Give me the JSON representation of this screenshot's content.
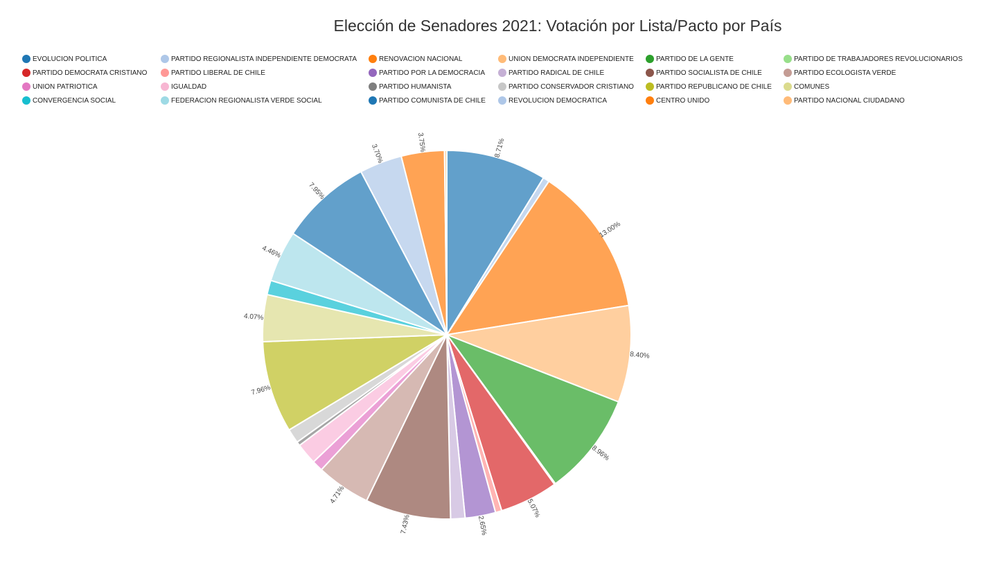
{
  "chart_data": {
    "type": "pie",
    "title": "Elección de Senadores 2021: Votación por Lista/Pacto por País",
    "legend_position": "top",
    "categories": [
      "EVOLUCION POLITICA",
      "PARTIDO REGIONALISTA INDEPENDIENTE DEMOCRATA",
      "RENOVACION NACIONAL",
      "UNION DEMOCRATA INDEPENDIENTE",
      "PARTIDO DE LA GENTE",
      "PARTIDO DE TRABAJADORES REVOLUCIONARIOS",
      "PARTIDO DEMOCRATA CRISTIANO",
      "PARTIDO LIBERAL DE CHILE",
      "PARTIDO POR LA DEMOCRACIA",
      "PARTIDO RADICAL DE CHILE",
      "PARTIDO SOCIALISTA DE CHILE",
      "PARTIDO ECOLOGISTA VERDE",
      "UNION PATRIOTICA",
      "IGUALDAD",
      "PARTIDO HUMANISTA",
      "PARTIDO CONSERVADOR CRISTIANO",
      "PARTIDO REPUBLICANO DE CHILE",
      "COMUNES",
      "CONVERGENCIA SOCIAL",
      "FEDERACION REGIONALISTA VERDE SOCIAL",
      "PARTIDO COMUNISTA DE CHILE",
      "REVOLUCION DEMOCRATICA",
      "CENTRO UNIDO",
      "PARTIDO NACIONAL CIUDADANO"
    ],
    "legend_colors": [
      "#1f77b4",
      "#aec7e8",
      "#ff7f0e",
      "#ffbb78",
      "#2ca02c",
      "#98df8a",
      "#d62728",
      "#ff9896",
      "#9467bd",
      "#c5b0d5",
      "#8c564b",
      "#c49c94",
      "#e377c2",
      "#f7b6d2",
      "#7f7f7f",
      "#c7c7c7",
      "#bcbd22",
      "#dbdb8d",
      "#17becf",
      "#9edae5",
      "#1f77b4",
      "#aec7e8",
      "#ff7f0e",
      "#ffbb78"
    ],
    "slice_colors": [
      "#62a0cb",
      "#c6d8ef",
      "#ffa354",
      "#ffcf9f",
      "#6abd68",
      "#b8e8ae",
      "#e36869",
      "#ffb4b3",
      "#b395d3",
      "#d8cae5",
      "#ae8981",
      "#d6b9b3",
      "#eba0d6",
      "#fbcce3",
      "#a5a5a5",
      "#d8d8d8",
      "#d0d165",
      "#e6e6b0",
      "#5ad1de",
      "#bde6ee",
      "#62a0cb",
      "#c6d8ef",
      "#ffa354",
      "#ffcf9f"
    ],
    "values": [
      8.71,
      0.55,
      13.0,
      8.4,
      8.96,
      0.1,
      5.07,
      0.55,
      2.65,
      1.25,
      7.43,
      4.71,
      0.95,
      1.85,
      0.35,
      1.25,
      7.96,
      4.07,
      1.25,
      4.46,
      7.95,
      3.7,
      3.75,
      0.2
    ],
    "labels": [
      "8.71%",
      "",
      "13.00%",
      "8.40%",
      "8.96%",
      "",
      "5.07%",
      "",
      "2.65%",
      "",
      "7.43%",
      "4.71%",
      "",
      "",
      "",
      "",
      "7.96%",
      "4.07%",
      "",
      "4.46%",
      "7.95%",
      "3.70%",
      "3.75%",
      ""
    ]
  }
}
